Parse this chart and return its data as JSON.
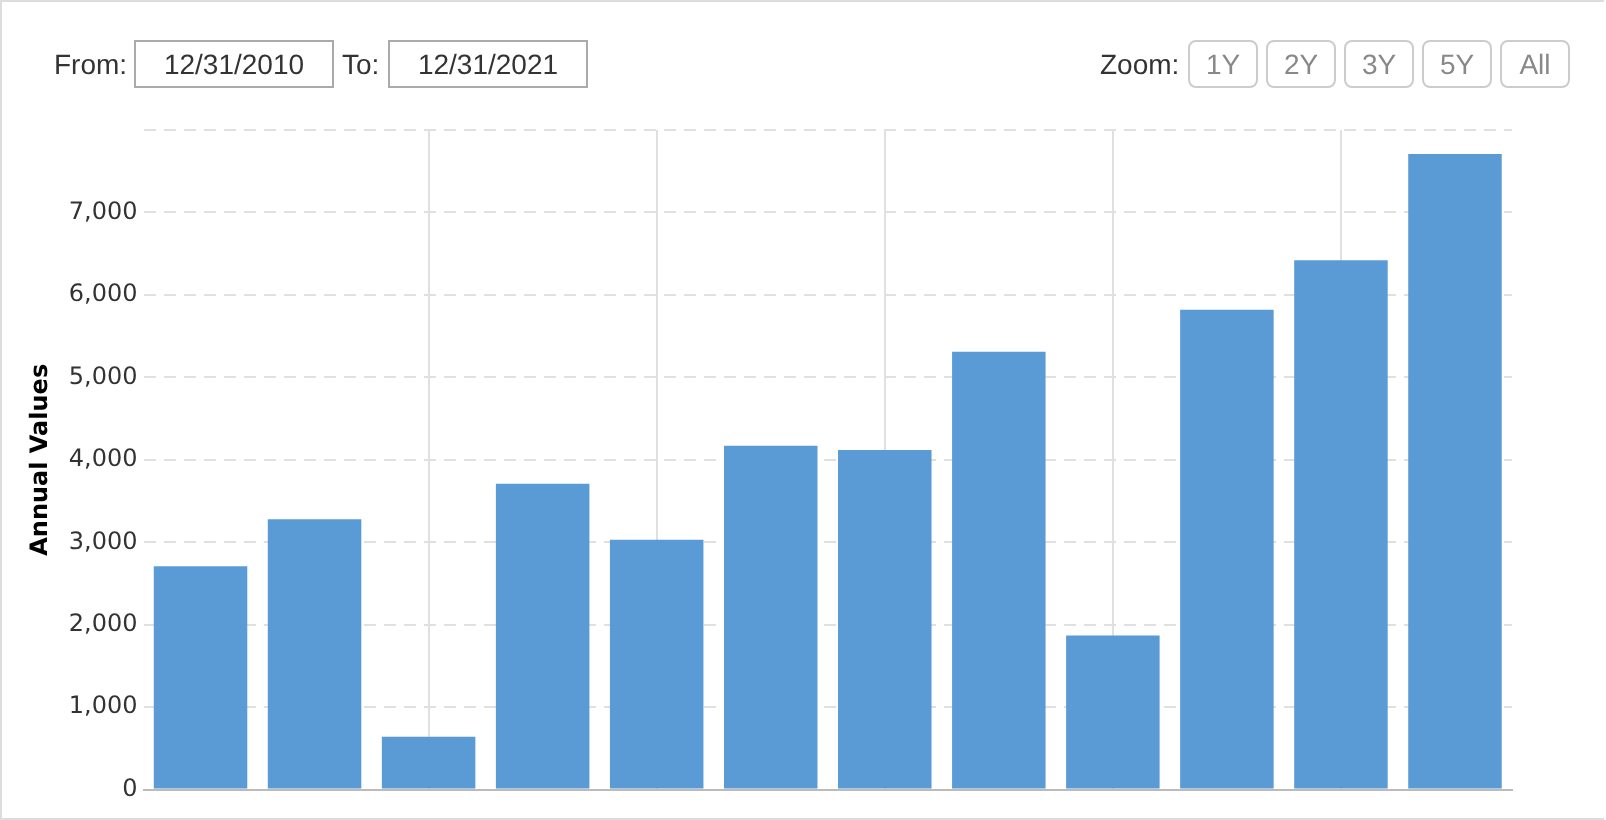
{
  "chart_data": {
    "type": "bar",
    "ylabel": "Annual Values",
    "categories": [
      null,
      null,
      null,
      null,
      null,
      null,
      null,
      null,
      null,
      null,
      null,
      null
    ],
    "values": [
      2710,
      3280,
      640,
      3710,
      3030,
      4170,
      4120,
      5310,
      1870,
      5820,
      6420,
      7710
    ],
    "color": "#5b9bd5",
    "ylim": [
      0,
      8000
    ],
    "yticks": [
      {
        "value": 0,
        "label": "0"
      },
      {
        "value": 1000,
        "label": "1,000"
      },
      {
        "value": 2000,
        "label": "2,000"
      },
      {
        "value": 3000,
        "label": "3,000"
      },
      {
        "value": 4000,
        "label": "4,000"
      },
      {
        "value": 5000,
        "label": "5,000"
      },
      {
        "value": 6000,
        "label": "6,000"
      },
      {
        "value": 7000,
        "label": "7,000"
      },
      {
        "value": 8000,
        "label": null
      }
    ],
    "grid": true,
    "annotations": [
      "From:",
      "12/31/2010",
      "To:",
      "12/31/2021",
      "Zoom:",
      "1Y",
      "2Y",
      "3Y",
      "5Y",
      "All"
    ]
  }
}
